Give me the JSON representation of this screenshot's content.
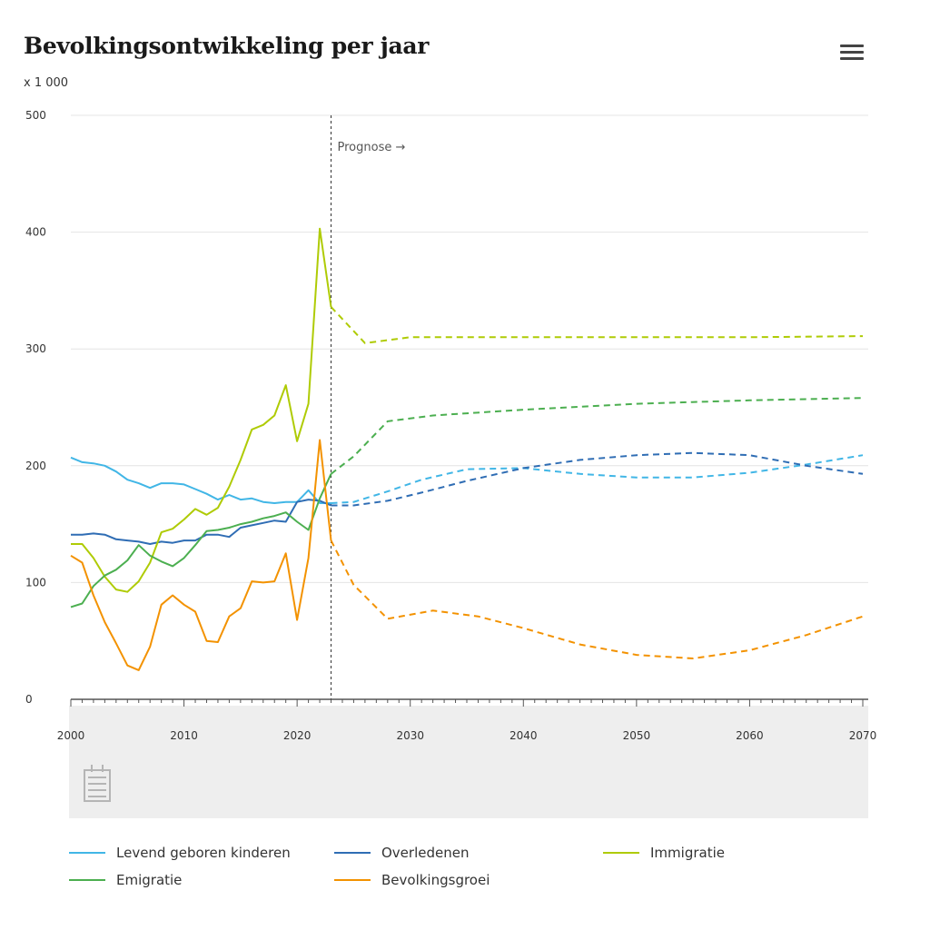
{
  "header": {
    "title": "Bevolkingsontwikkeling per jaar",
    "unit": "x 1 000",
    "menu_icon": "hamburger-menu-icon"
  },
  "chart_data": {
    "type": "line",
    "title": "Bevolkingsontwikkeling per jaar",
    "ylabel": "x 1 000",
    "xlim": [
      2000,
      2070
    ],
    "ylim": [
      0,
      500
    ],
    "xticks": [
      2000,
      2010,
      2020,
      2030,
      2040,
      2050,
      2060,
      2070
    ],
    "yticks": [
      0,
      100,
      200,
      300,
      400,
      500
    ],
    "forecast_start": 2023,
    "annotation": "Prognose →",
    "grid": true,
    "legend_position": "bottom",
    "navigator_icon": "calendar-navigator-icon",
    "series": [
      {
        "name": "Levend geboren kinderen",
        "color": "#41b6e6",
        "historical": [
          [
            2000,
            207
          ],
          [
            2001,
            203
          ],
          [
            2002,
            202
          ],
          [
            2003,
            200
          ],
          [
            2004,
            195
          ],
          [
            2005,
            188
          ],
          [
            2006,
            185
          ],
          [
            2007,
            181
          ],
          [
            2008,
            185
          ],
          [
            2009,
            185
          ],
          [
            2010,
            184
          ],
          [
            2011,
            180
          ],
          [
            2012,
            176
          ],
          [
            2013,
            171
          ],
          [
            2014,
            175
          ],
          [
            2015,
            171
          ],
          [
            2016,
            172
          ],
          [
            2017,
            169
          ],
          [
            2018,
            168
          ],
          [
            2019,
            169
          ],
          [
            2020,
            169
          ],
          [
            2021,
            179
          ],
          [
            2022,
            168
          ],
          [
            2023,
            168
          ]
        ],
        "forecast": [
          [
            2023,
            168
          ],
          [
            2025,
            169
          ],
          [
            2028,
            178
          ],
          [
            2031,
            188
          ],
          [
            2035,
            197
          ],
          [
            2040,
            198
          ],
          [
            2045,
            193
          ],
          [
            2050,
            190
          ],
          [
            2055,
            190
          ],
          [
            2060,
            194
          ],
          [
            2065,
            201
          ],
          [
            2070,
            209
          ]
        ]
      },
      {
        "name": "Overledenen",
        "color": "#2f6db4",
        "historical": [
          [
            2000,
            141
          ],
          [
            2001,
            141
          ],
          [
            2002,
            142
          ],
          [
            2003,
            141
          ],
          [
            2004,
            137
          ],
          [
            2005,
            136
          ],
          [
            2006,
            135
          ],
          [
            2007,
            133
          ],
          [
            2008,
            135
          ],
          [
            2009,
            134
          ],
          [
            2010,
            136
          ],
          [
            2011,
            136
          ],
          [
            2012,
            141
          ],
          [
            2013,
            141
          ],
          [
            2014,
            139
          ],
          [
            2015,
            147
          ],
          [
            2016,
            149
          ],
          [
            2017,
            151
          ],
          [
            2018,
            153
          ],
          [
            2019,
            152
          ],
          [
            2020,
            169
          ],
          [
            2021,
            171
          ],
          [
            2022,
            170
          ],
          [
            2023,
            166
          ]
        ],
        "forecast": [
          [
            2023,
            166
          ],
          [
            2025,
            166
          ],
          [
            2028,
            170
          ],
          [
            2031,
            177
          ],
          [
            2035,
            187
          ],
          [
            2040,
            198
          ],
          [
            2045,
            205
          ],
          [
            2050,
            209
          ],
          [
            2055,
            211
          ],
          [
            2060,
            209
          ],
          [
            2065,
            200
          ],
          [
            2070,
            193
          ]
        ]
      },
      {
        "name": "Immigratie",
        "color": "#afcb05",
        "historical": [
          [
            2000,
            133
          ],
          [
            2001,
            133
          ],
          [
            2002,
            121
          ],
          [
            2003,
            105
          ],
          [
            2004,
            94
          ],
          [
            2005,
            92
          ],
          [
            2006,
            101
          ],
          [
            2007,
            117
          ],
          [
            2008,
            143
          ],
          [
            2009,
            146
          ],
          [
            2010,
            154
          ],
          [
            2011,
            163
          ],
          [
            2012,
            158
          ],
          [
            2013,
            164
          ],
          [
            2014,
            182
          ],
          [
            2015,
            205
          ],
          [
            2016,
            231
          ],
          [
            2017,
            235
          ],
          [
            2018,
            243
          ],
          [
            2019,
            269
          ],
          [
            2020,
            221
          ],
          [
            2021,
            253
          ],
          [
            2022,
            403
          ],
          [
            2023,
            336
          ]
        ],
        "forecast": [
          [
            2023,
            336
          ],
          [
            2026,
            305
          ],
          [
            2030,
            310
          ],
          [
            2040,
            310
          ],
          [
            2050,
            310
          ],
          [
            2060,
            310
          ],
          [
            2070,
            311
          ]
        ]
      },
      {
        "name": "Emigratie",
        "color": "#4caf50",
        "historical": [
          [
            2000,
            79
          ],
          [
            2001,
            82
          ],
          [
            2002,
            97
          ],
          [
            2003,
            106
          ],
          [
            2004,
            111
          ],
          [
            2005,
            119
          ],
          [
            2006,
            132
          ],
          [
            2007,
            123
          ],
          [
            2008,
            118
          ],
          [
            2009,
            114
          ],
          [
            2010,
            121
          ],
          [
            2011,
            132
          ],
          [
            2012,
            144
          ],
          [
            2013,
            145
          ],
          [
            2014,
            147
          ],
          [
            2015,
            150
          ],
          [
            2016,
            152
          ],
          [
            2017,
            155
          ],
          [
            2018,
            157
          ],
          [
            2019,
            160
          ],
          [
            2020,
            152
          ],
          [
            2021,
            145
          ],
          [
            2022,
            172
          ],
          [
            2023,
            193
          ]
        ],
        "forecast": [
          [
            2023,
            193
          ],
          [
            2025,
            208
          ],
          [
            2028,
            238
          ],
          [
            2032,
            243
          ],
          [
            2040,
            248
          ],
          [
            2050,
            253
          ],
          [
            2060,
            256
          ],
          [
            2070,
            258
          ]
        ]
      },
      {
        "name": "Bevolkingsgroei",
        "color": "#f39200",
        "historical": [
          [
            2000,
            123
          ],
          [
            2001,
            117
          ],
          [
            2002,
            89
          ],
          [
            2003,
            66
          ],
          [
            2004,
            48
          ],
          [
            2005,
            29
          ],
          [
            2006,
            25
          ],
          [
            2007,
            45
          ],
          [
            2008,
            81
          ],
          [
            2009,
            89
          ],
          [
            2010,
            81
          ],
          [
            2011,
            75
          ],
          [
            2012,
            50
          ],
          [
            2013,
            49
          ],
          [
            2014,
            71
          ],
          [
            2015,
            78
          ],
          [
            2016,
            101
          ],
          [
            2017,
            100
          ],
          [
            2018,
            101
          ],
          [
            2019,
            125
          ],
          [
            2020,
            68
          ],
          [
            2021,
            121
          ],
          [
            2022,
            222
          ],
          [
            2023,
            136
          ]
        ],
        "forecast": [
          [
            2023,
            136
          ],
          [
            2025,
            98
          ],
          [
            2028,
            69
          ],
          [
            2032,
            76
          ],
          [
            2036,
            71
          ],
          [
            2040,
            61
          ],
          [
            2045,
            47
          ],
          [
            2050,
            38
          ],
          [
            2055,
            35
          ],
          [
            2060,
            42
          ],
          [
            2065,
            55
          ],
          [
            2070,
            71
          ]
        ]
      }
    ]
  }
}
